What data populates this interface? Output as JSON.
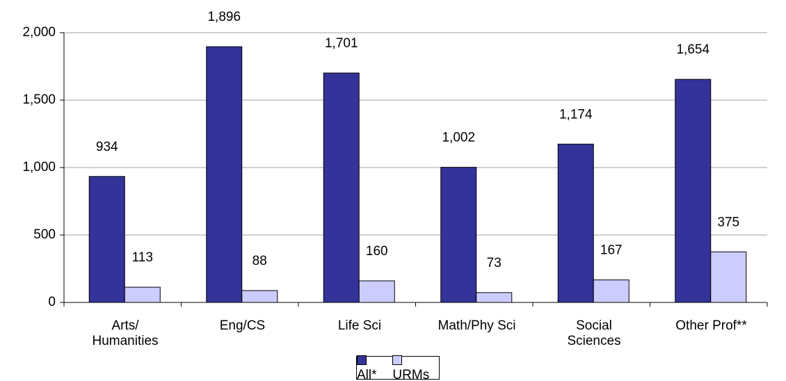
{
  "chart_data": {
    "type": "bar",
    "categories": [
      "Arts/\nHumanities",
      "Eng/CS",
      "Life Sci",
      "Math/Phy Sci",
      "Social\nSciences",
      "Other Prof**"
    ],
    "series": [
      {
        "name": "All*",
        "color": "#333399",
        "values": [
          934,
          1896,
          1701,
          1002,
          1174,
          1654
        ],
        "value_labels": [
          "934",
          "1,896",
          "1,701",
          "1,002",
          "1,174",
          "1,654"
        ]
      },
      {
        "name": "URMs",
        "color": "#ccccff",
        "values": [
          113,
          88,
          160,
          73,
          167,
          375
        ],
        "value_labels": [
          "113",
          "88",
          "160",
          "73",
          "167",
          "375"
        ]
      }
    ],
    "ylim": [
      0,
      2000
    ],
    "yticks": [
      0,
      500,
      {
        "value": 1000,
        "label": "1,000"
      },
      {
        "value": 1500,
        "label": "1,500"
      },
      {
        "value": 2000,
        "label": "2,000"
      }
    ],
    "grid": true
  }
}
